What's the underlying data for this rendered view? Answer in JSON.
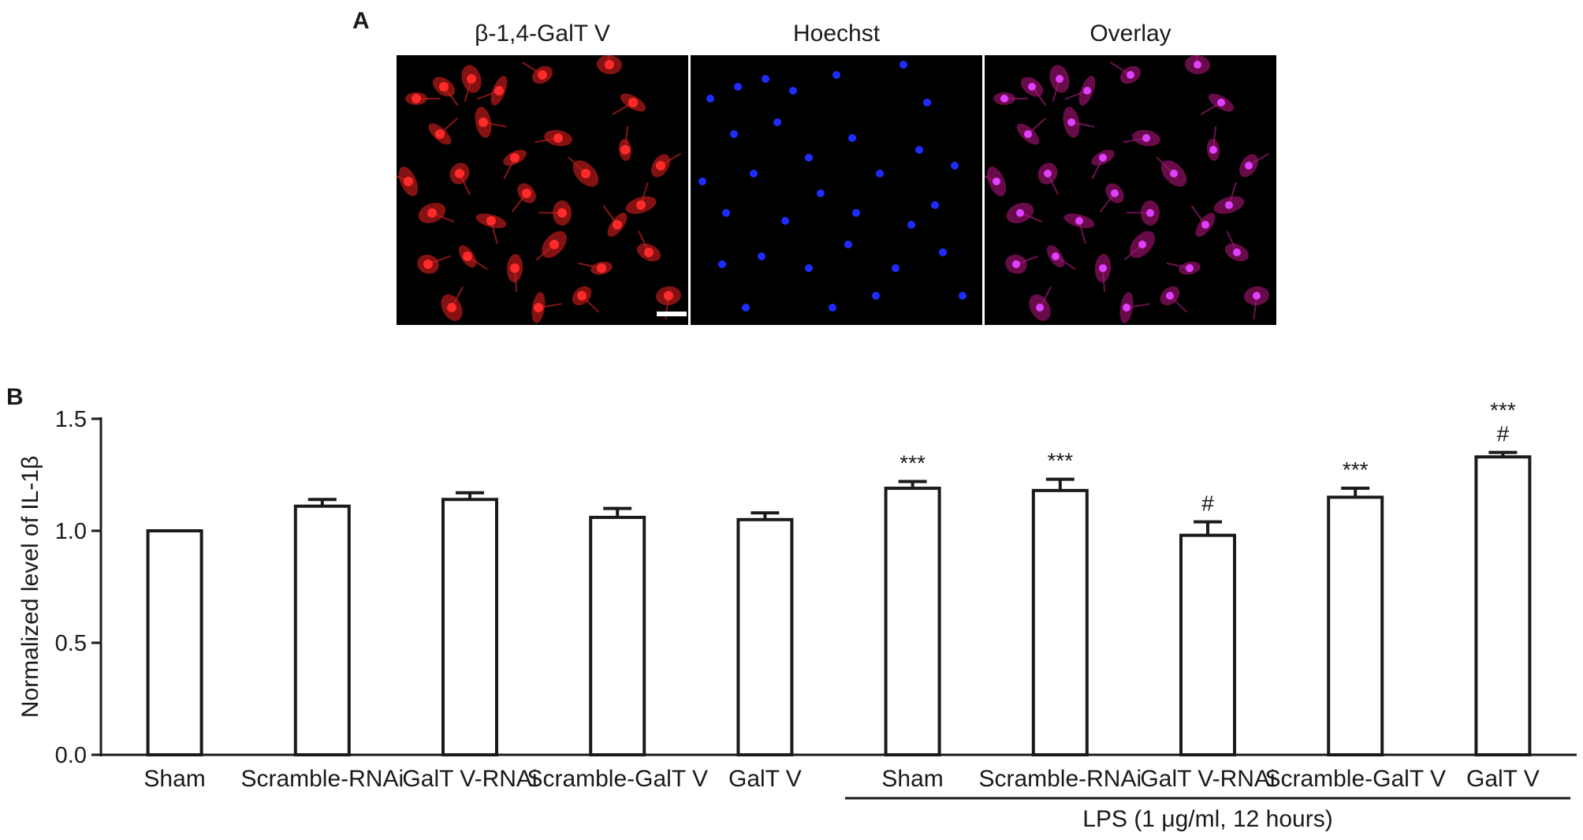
{
  "panels": {
    "a": {
      "letter": "A",
      "images": [
        {
          "title": "β-1,4-GalT V",
          "stain": "red",
          "color": "#ff2a2a"
        },
        {
          "title": "Hoechst",
          "stain": "blue",
          "color": "#1e2cff"
        },
        {
          "title": "Overlay",
          "stain": "magenta",
          "color": "#e040ff"
        }
      ]
    },
    "b": {
      "letter": "B"
    }
  },
  "chart_data": {
    "type": "bar",
    "ylabel": "Normalized level of IL-1β",
    "ylim": [
      0,
      1.5
    ],
    "yticks": [
      "0.0",
      "0.5",
      "1.0",
      "1.5"
    ],
    "ytick_values": [
      0,
      0.5,
      1.0,
      1.5
    ],
    "categories": [
      "Sham",
      "Scramble-RNAi",
      "GalT V-RNAi",
      "Scramble-GalT V",
      "GalT V",
      "Sham",
      "Scramble-RNAi",
      "GalT V-RNAi",
      "Scramble-GalT V",
      "GalT V"
    ],
    "values": [
      1.0,
      1.11,
      1.14,
      1.06,
      1.05,
      1.19,
      1.18,
      0.98,
      1.15,
      1.33
    ],
    "errors": [
      0.0,
      0.03,
      0.03,
      0.04,
      0.03,
      0.03,
      0.05,
      0.06,
      0.04,
      0.02
    ],
    "annotations": [
      "",
      "",
      "",
      "",
      "",
      "***",
      "***",
      "#",
      "***",
      "***\n#"
    ],
    "group_label": "LPS (1 μg/ml, 12 hours)",
    "group_range": [
      5,
      9
    ],
    "bar_fill": "#ffffff",
    "bar_stroke": "#1a1a1a"
  }
}
